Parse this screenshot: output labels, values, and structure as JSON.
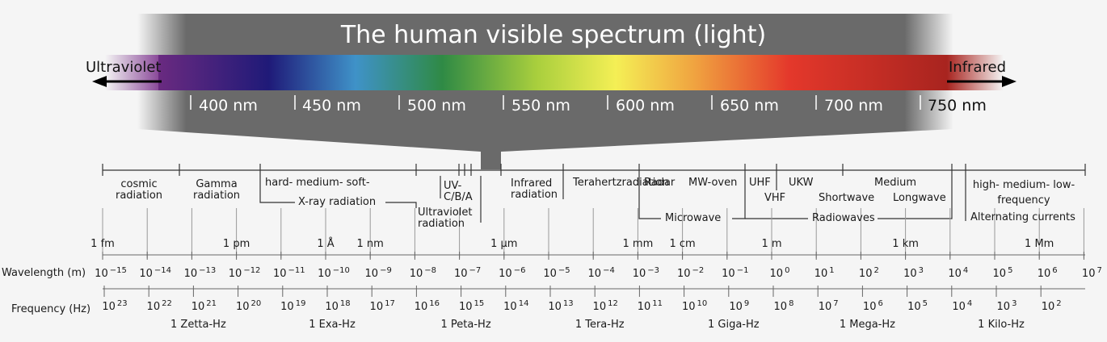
{
  "title": "The human visible spectrum (light)",
  "ultraviolet_label": "Ultraviolet",
  "infrared_label": "Infrared",
  "nm_labels": [
    "400 nm",
    "450 nm",
    "500 nm",
    "550 nm",
    "600 nm",
    "650 nm",
    "700 nm",
    "750 nm"
  ],
  "regions": {
    "cosmic": "cosmic\nradiation",
    "gamma": "Gamma\nradiation",
    "xray_kinds": "hard- medium- soft-",
    "xray": "X-ray radiation",
    "uv_cba": "UV-\nC/B/A",
    "ultraviolet": "Ultraviolet\nradiation",
    "infrared": "Infrared\nradiation",
    "terahertz": "Terahertzradiation",
    "radar": "Radar",
    "mw_oven": "MW-oven",
    "uhf": "UHF",
    "ukw": "UKW",
    "vhf": "VHF",
    "medium": "Medium",
    "shortwave": "Shortwave",
    "longwave": "Longwave",
    "microwave": "Microwave",
    "radiowaves": "Radiowaves",
    "hml_freq": "high- medium- low-\nfrequency",
    "alternating": "Alternating currents"
  },
  "length_units": [
    {
      "label": "1 fm",
      "exp": -15
    },
    {
      "label": "1 pm",
      "exp": -12
    },
    {
      "label": "1 Å",
      "exp": -10
    },
    {
      "label": "1 nm",
      "exp": -9
    },
    {
      "label": "1 µm",
      "exp": -6
    },
    {
      "label": "1 mm",
      "exp": -3
    },
    {
      "label": "1 cm",
      "exp": -2
    },
    {
      "label": "1 m",
      "exp": 0
    },
    {
      "label": "1 km",
      "exp": 3
    },
    {
      "label": "1 Mm",
      "exp": 6
    }
  ],
  "wavelength_axis": {
    "label": "Wavelength (m)",
    "base": "10",
    "exponents": [
      "−15",
      "−14",
      "−13",
      "−12",
      "−11",
      "−10",
      "−9",
      "−8",
      "−7",
      "−6",
      "−5",
      "−4",
      "−3",
      "−2",
      "−1",
      "0",
      "1",
      "2",
      "3",
      "4",
      "5",
      "6",
      "7"
    ]
  },
  "frequency_axis": {
    "label": "Frequency (Hz)",
    "base": "10",
    "exponents": [
      "23",
      "22",
      "21",
      "20",
      "19",
      "18",
      "17",
      "16",
      "15",
      "14",
      "13",
      "12",
      "11",
      "10",
      "9",
      "8",
      "7",
      "6",
      "5",
      "4",
      "3",
      "2"
    ]
  },
  "frequency_units": [
    {
      "label": "1 Zetta-Hz",
      "exp": 21
    },
    {
      "label": "1 Exa-Hz",
      "exp": 18
    },
    {
      "label": "1 Peta-Hz",
      "exp": 15
    },
    {
      "label": "1 Tera-Hz",
      "exp": 12
    },
    {
      "label": "1 Giga-Hz",
      "exp": 9
    },
    {
      "label": "1 Mega-Hz",
      "exp": 6
    },
    {
      "label": "1 Kilo-Hz",
      "exp": 3
    }
  ]
}
